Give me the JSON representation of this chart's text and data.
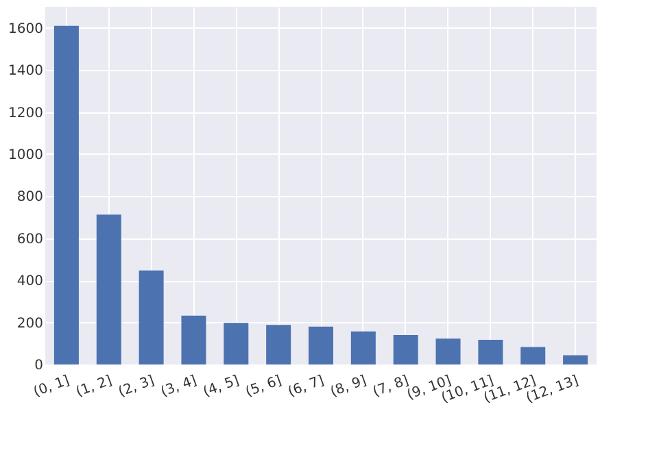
{
  "chart_data": {
    "type": "bar",
    "categories": [
      "(0, 1]",
      "(1, 2]",
      "(2, 3]",
      "(3, 4]",
      "(4, 5]",
      "(5, 6]",
      "(6, 7]",
      "(8, 9]",
      "(7, 8]",
      "(9, 10]",
      "(10, 11]",
      "(11, 12]",
      "(12, 13]"
    ],
    "values": [
      1610,
      712,
      447,
      232,
      198,
      188,
      180,
      157,
      140,
      123,
      117,
      83,
      44
    ],
    "color": "#4c72b0",
    "ylim": [
      0,
      1700
    ],
    "yticks": [
      0,
      200,
      400,
      600,
      800,
      1000,
      1200,
      1400,
      1600
    ],
    "grid": true
  }
}
